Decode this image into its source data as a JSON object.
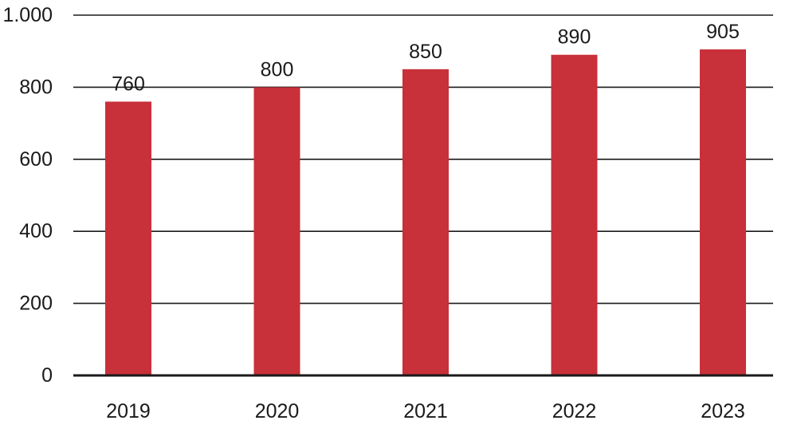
{
  "chart_data": {
    "type": "bar",
    "categories": [
      "2019",
      "2020",
      "2021",
      "2022",
      "2023"
    ],
    "values": [
      760,
      800,
      850,
      890,
      905
    ],
    "data_labels": [
      "760",
      "800",
      "850",
      "890",
      "905"
    ],
    "title": "",
    "xlabel": "",
    "ylabel": "",
    "ylim": [
      0,
      1000
    ],
    "yticks": [
      0,
      200,
      400,
      600,
      800,
      1000
    ],
    "ytick_labels": [
      "0",
      "200",
      "400",
      "600",
      "800",
      "1.000"
    ],
    "grid": true,
    "legend": "none",
    "bar_color": "#c8303a",
    "grid_color": "#1a1a1a"
  }
}
